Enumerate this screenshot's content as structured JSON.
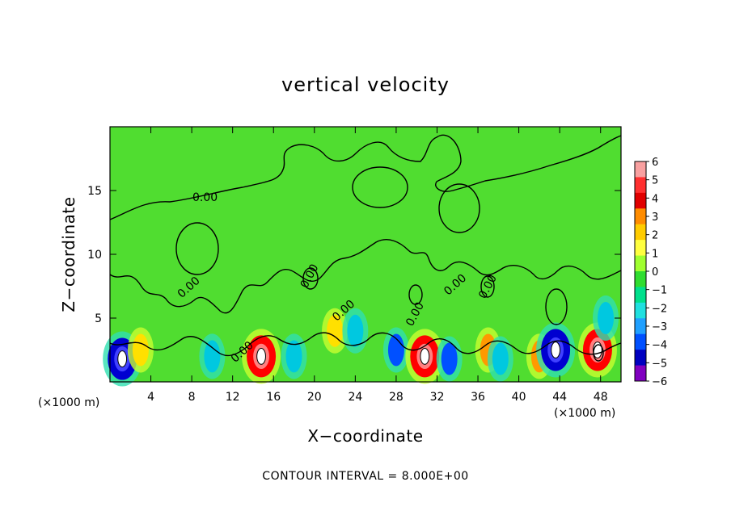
{
  "chart_data": {
    "type": "heatmap",
    "title": "vertical velocity",
    "xlabel": "X−coordinate",
    "ylabel": "Z−coordinate",
    "x_unit_label": "(×1000 m)",
    "xlim": [
      0,
      50
    ],
    "ylim": [
      0,
      20
    ],
    "x_ticks": [
      4,
      8,
      12,
      16,
      20,
      24,
      28,
      32,
      36,
      40,
      44,
      48
    ],
    "y_ticks": [
      5,
      10,
      15
    ],
    "colorbar": {
      "ticks": [
        "6",
        "5",
        "4",
        "3",
        "2",
        "1",
        "0",
        "−1",
        "−2",
        "−3",
        "−4",
        "−5",
        "−6"
      ],
      "range": [
        -6,
        6
      ],
      "colors": [
        "#f8a0a0",
        "#ff3030",
        "#e00000",
        "#ff8c00",
        "#ffcc00",
        "#ffff40",
        "#a0ff30",
        "#30dd30",
        "#00e08c",
        "#20e0e0",
        "#20a0ff",
        "#0050ff",
        "#0000c0",
        "#8000c0"
      ]
    },
    "contour_labels": [
      "0.00",
      "0.00",
      "0.00",
      "0.00",
      "0.00",
      "0.00",
      "0.00",
      "0.00"
    ],
    "footer": "CONTOUR INTERVAL = 8.000E+00",
    "features": [
      {
        "x": 1.2,
        "z": 1.8,
        "w": -8
      },
      {
        "x": 3.0,
        "z": 2.5,
        "w": 2
      },
      {
        "x": 10.0,
        "z": 2.0,
        "w": -3
      },
      {
        "x": 14.8,
        "z": 2.0,
        "w": 8
      },
      {
        "x": 18.0,
        "z": 2.0,
        "w": -3
      },
      {
        "x": 22.0,
        "z": 4.0,
        "w": 2
      },
      {
        "x": 24.0,
        "z": 4.0,
        "w": -3
      },
      {
        "x": 28.0,
        "z": 2.5,
        "w": -5
      },
      {
        "x": 30.8,
        "z": 2.0,
        "w": 8
      },
      {
        "x": 33.2,
        "z": 1.8,
        "w": -4
      },
      {
        "x": 37.0,
        "z": 2.5,
        "w": 3
      },
      {
        "x": 38.2,
        "z": 1.8,
        "w": -3
      },
      {
        "x": 42.0,
        "z": 2.0,
        "w": 3
      },
      {
        "x": 43.6,
        "z": 2.5,
        "w": -8
      },
      {
        "x": 47.7,
        "z": 2.5,
        "w": 9
      },
      {
        "x": 48.5,
        "z": 5.0,
        "w": -2
      }
    ]
  }
}
